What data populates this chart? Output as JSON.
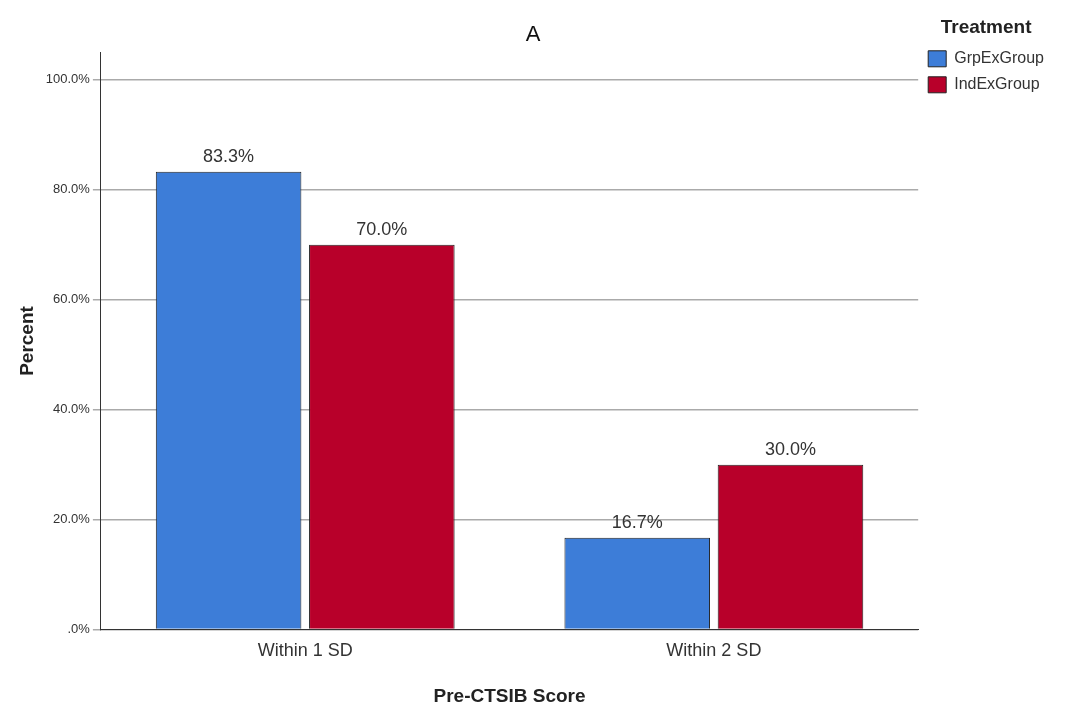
{
  "chart_data": {
    "type": "bar",
    "title": "A",
    "xlabel": "Pre-CTSIB Score",
    "ylabel": "Percent",
    "legend_title": "Treatment",
    "categories": [
      "Within 1 SD",
      "Within 2 SD"
    ],
    "series": [
      {
        "name": "GrpExGroup",
        "color": "#3d7dd8",
        "values": [
          83.3,
          16.7
        ],
        "value_labels": [
          "83.3%",
          "16.7%"
        ]
      },
      {
        "name": "IndExGroup",
        "color": "#b8002a",
        "values": [
          70.0,
          30.0
        ],
        "value_labels": [
          "70.0%",
          "30.0%"
        ]
      }
    ],
    "ylim": [
      0,
      105
    ],
    "yticks": [
      {
        "value": 0,
        "label": ".0%"
      },
      {
        "value": 20,
        "label": "20.0%"
      },
      {
        "value": 40,
        "label": "40.0%"
      },
      {
        "value": 60,
        "label": "60.0%"
      },
      {
        "value": 80,
        "label": "80.0%"
      },
      {
        "value": 100,
        "label": "100.0%"
      }
    ],
    "grid": "y",
    "legend": "top right"
  }
}
